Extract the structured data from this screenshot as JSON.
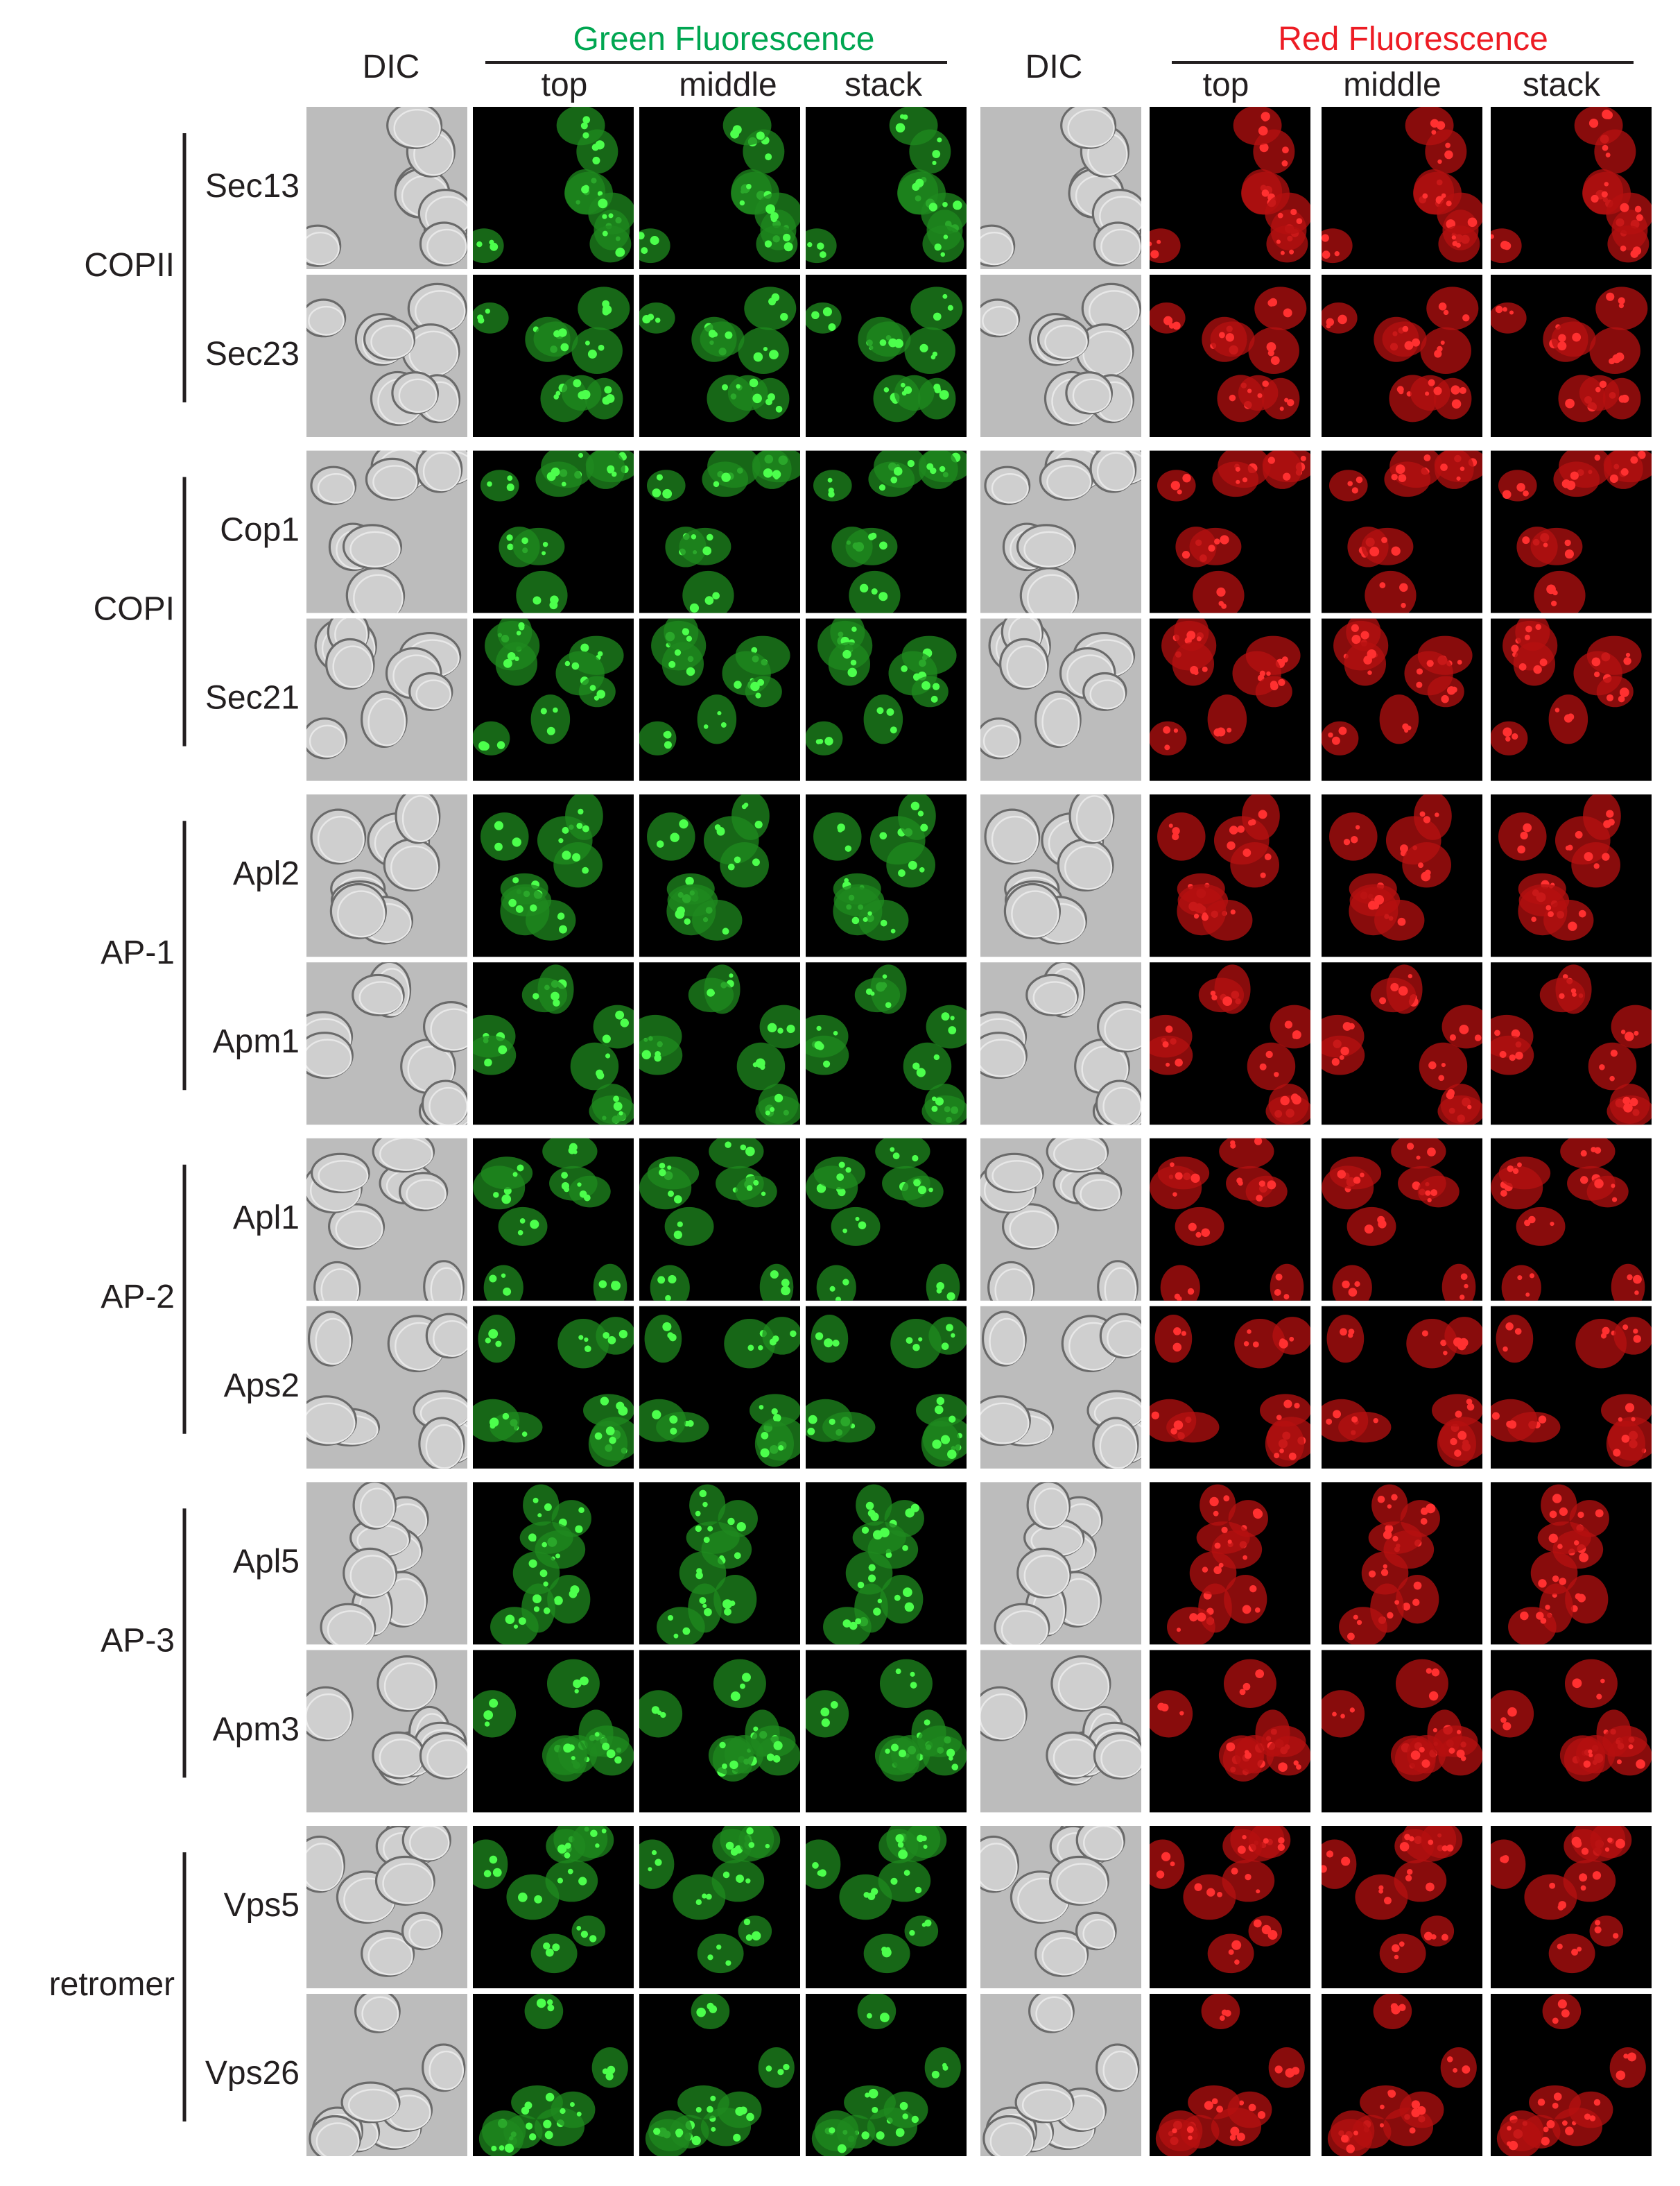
{
  "headers": {
    "dic_left": "DIC",
    "green": "Green Fluorescence",
    "green_sub": [
      "top",
      "middle",
      "stack"
    ],
    "dic_right": "DIC",
    "red": "Red Fluorescence",
    "red_sub": [
      "top",
      "middle",
      "stack"
    ]
  },
  "groups": [
    {
      "name": "COPII",
      "proteins": [
        "Sec13",
        "Sec23"
      ]
    },
    {
      "name": "COPI",
      "proteins": [
        "Cop1",
        "Sec21"
      ]
    },
    {
      "name": "AP-1",
      "proteins": [
        "Apl2",
        "Apm1"
      ]
    },
    {
      "name": "AP-2",
      "proteins": [
        "Apl1",
        "Aps2"
      ]
    },
    {
      "name": "AP-3",
      "proteins": [
        "Apl5",
        "Apm3"
      ]
    },
    {
      "name": "retromer",
      "proteins": [
        "Vps5",
        "Vps26"
      ]
    }
  ]
}
